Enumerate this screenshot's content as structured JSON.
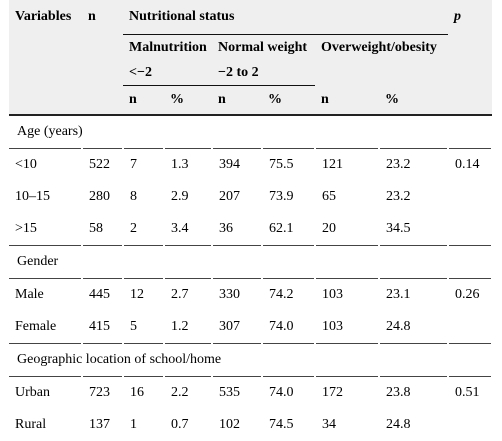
{
  "header": {
    "variables": "Variables",
    "n": "n",
    "nutritional_status": "Nutritional status",
    "p": "p",
    "malnutrition": "Malnutrition",
    "malnutrition_range": "<−2",
    "normal_weight": "Normal weight",
    "normal_range": "−2 to 2",
    "overweight": "Overweight/obesity",
    "sub": [
      "n",
      "%",
      "n",
      "%",
      "n",
      "%"
    ]
  },
  "sections": [
    {
      "title": "Age (years)",
      "rows": [
        {
          "label": "<10",
          "n": "522",
          "m_n": "7",
          "m_pct": "1.3",
          "nw_n": "394",
          "nw_pct": "75.5",
          "ow_n": "121",
          "ow_pct": "23.2",
          "p": "0.14"
        },
        {
          "label": "10–15",
          "n": "280",
          "m_n": "8",
          "m_pct": "2.9",
          "nw_n": "207",
          "nw_pct": "73.9",
          "ow_n": "65",
          "ow_pct": "23.2",
          "p": ""
        },
        {
          "label": ">15",
          "n": "58",
          "m_n": "2",
          "m_pct": "3.4",
          "nw_n": "36",
          "nw_pct": "62.1",
          "ow_n": "20",
          "ow_pct": "34.5",
          "p": ""
        }
      ]
    },
    {
      "title": "Gender",
      "rows": [
        {
          "label": "Male",
          "n": "445",
          "m_n": "12",
          "m_pct": "2.7",
          "nw_n": "330",
          "nw_pct": "74.2",
          "ow_n": "103",
          "ow_pct": "23.1",
          "p": "0.26"
        },
        {
          "label": "Female",
          "n": "415",
          "m_n": "5",
          "m_pct": "1.2",
          "nw_n": "307",
          "nw_pct": "74.0",
          "ow_n": "103",
          "ow_pct": "24.8",
          "p": ""
        }
      ]
    },
    {
      "title": "Geographic location of school/home",
      "rows": [
        {
          "label": "Urban",
          "n": "723",
          "m_n": "16",
          "m_pct": "2.2",
          "nw_n": "535",
          "nw_pct": "74.0",
          "ow_n": "172",
          "ow_pct": "23.8",
          "p": "0.51"
        },
        {
          "label": "Rural",
          "n": "137",
          "m_n": "1",
          "m_pct": "0.7",
          "nw_n": "102",
          "nw_pct": "74.5",
          "ow_n": "34",
          "ow_pct": "24.8",
          "p": ""
        }
      ]
    }
  ]
}
